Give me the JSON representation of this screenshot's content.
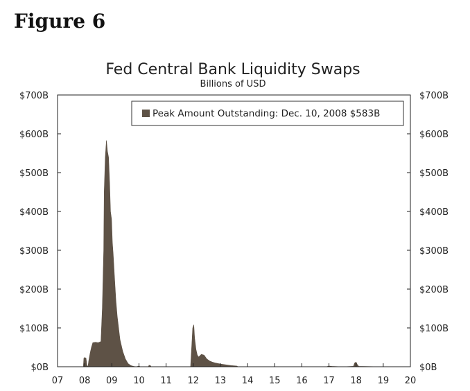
{
  "figure_label": "Figure 6",
  "chart_data": {
    "type": "area",
    "title": "Fed Central Bank Liquidity Swaps",
    "subtitle": "Billions of USD",
    "xlabel": "",
    "ylabel": "",
    "x_tick_labels": [
      "07",
      "08",
      "09",
      "10",
      "11",
      "12",
      "13",
      "14",
      "15",
      "16",
      "17",
      "18",
      "19",
      "20"
    ],
    "x_range": [
      2007,
      2020
    ],
    "ylim": [
      0,
      700
    ],
    "y_tick_values": [
      0,
      100,
      200,
      300,
      400,
      500,
      600,
      700
    ],
    "y_tick_labels": [
      "$0B",
      "$100B",
      "$200B",
      "$300B",
      "$400B",
      "$500B",
      "$600B",
      "$700B"
    ],
    "legend": {
      "text": "Peak Amount Outstanding: Dec. 10, 2008 $583B",
      "placement": "top-right"
    },
    "grid": false,
    "colors": {
      "fill": "#5e5246",
      "frame": "#222222"
    },
    "series": [
      {
        "x": [
          2007.0,
          2007.95,
          2007.97,
          2008.0,
          2008.05,
          2008.08,
          2008.1,
          2008.12,
          2008.15,
          2008.2,
          2008.25,
          2008.3,
          2008.4,
          2008.5,
          2008.6,
          2008.65,
          2008.7,
          2008.72,
          2008.76,
          2008.8,
          2008.84,
          2008.88,
          2008.92,
          2008.95,
          2008.99,
          2009.02,
          2009.05,
          2009.1,
          2009.15,
          2009.2,
          2009.25,
          2009.3,
          2009.4,
          2009.5,
          2009.6,
          2009.7,
          2009.8,
          2009.9,
          2010.0,
          2010.05,
          2010.35,
          2010.37,
          2010.42,
          2010.45,
          2011.0,
          2011.9,
          2011.95,
          2011.98,
          2012.02,
          2012.05,
          2012.1,
          2012.15,
          2012.2,
          2012.3,
          2012.4,
          2012.5,
          2012.6,
          2012.7,
          2012.8,
          2013.0,
          2013.2,
          2013.4,
          2013.6,
          2013.65,
          2014.0,
          2015.0,
          2016.0,
          2016.9,
          2017.0,
          2017.1,
          2017.5,
          2017.9,
          2017.95,
          2018.0,
          2018.05,
          2018.1,
          2019.0,
          2020.0
        ],
        "values": [
          0,
          0,
          22,
          24,
          22,
          5,
          2,
          0,
          15,
          35,
          50,
          62,
          63,
          62,
          65,
          150,
          300,
          450,
          540,
          583,
          555,
          540,
          470,
          400,
          380,
          320,
          290,
          230,
          170,
          130,
          100,
          70,
          40,
          20,
          8,
          3,
          1,
          0,
          2,
          0,
          0,
          4,
          3,
          0,
          0,
          0,
          60,
          100,
          108,
          75,
          45,
          30,
          25,
          32,
          30,
          20,
          15,
          12,
          10,
          7,
          5,
          3,
          2,
          0,
          0,
          0,
          0,
          0,
          2,
          1,
          0,
          1,
          10,
          12,
          5,
          1,
          0,
          0
        ]
      }
    ]
  }
}
